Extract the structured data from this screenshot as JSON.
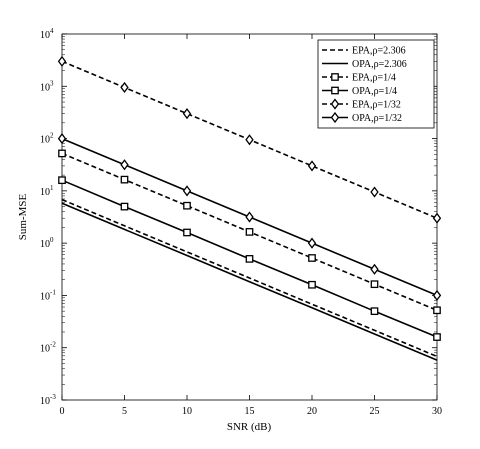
{
  "chart_data": {
    "type": "line",
    "xlabel": "SNR (dB)",
    "ylabel": "Sum-MSE",
    "xlim": [
      0,
      30
    ],
    "ylim": [
      0.001,
      10000
    ],
    "yscale": "log",
    "x_ticks": [
      "0",
      "5",
      "10",
      "15",
      "20",
      "25",
      "30"
    ],
    "y_ticks": [
      {
        "base": "10",
        "exp": "-3"
      },
      {
        "base": "10",
        "exp": "-2"
      },
      {
        "base": "10",
        "exp": "-1"
      },
      {
        "base": "10",
        "exp": "0"
      },
      {
        "base": "10",
        "exp": "1"
      },
      {
        "base": "10",
        "exp": "2"
      },
      {
        "base": "10",
        "exp": "3"
      },
      {
        "base": "10",
        "exp": "4"
      }
    ],
    "grid": false,
    "legend_position": "top-right",
    "x": [
      0,
      5,
      10,
      15,
      20,
      25,
      30
    ],
    "series": [
      {
        "name": "EPA,ρ=2.306",
        "style": "dashed",
        "marker": "none",
        "values": [
          6.8,
          2.15,
          0.68,
          0.215,
          0.068,
          0.0215,
          0.0068
        ]
      },
      {
        "name": "OPA,ρ=2.306",
        "style": "solid",
        "marker": "none",
        "values": [
          5.8,
          1.83,
          0.58,
          0.183,
          0.058,
          0.0183,
          0.0058
        ]
      },
      {
        "name": "EPA,ρ=1/4",
        "style": "dashed",
        "marker": "square",
        "values": [
          52,
          16.4,
          5.2,
          1.64,
          0.52,
          0.164,
          0.052
        ]
      },
      {
        "name": "OPA,ρ=1/4",
        "style": "solid",
        "marker": "square",
        "values": [
          16,
          5.0,
          1.6,
          0.5,
          0.16,
          0.05,
          0.016
        ]
      },
      {
        "name": "EPA,ρ=1/32",
        "style": "dashed",
        "marker": "diamond",
        "values": [
          3000,
          950,
          300,
          95,
          30,
          9.5,
          3.0
        ]
      },
      {
        "name": "OPA,ρ=1/32",
        "style": "solid",
        "marker": "diamond",
        "values": [
          100,
          31.6,
          10,
          3.16,
          1.0,
          0.316,
          0.1
        ]
      }
    ]
  }
}
